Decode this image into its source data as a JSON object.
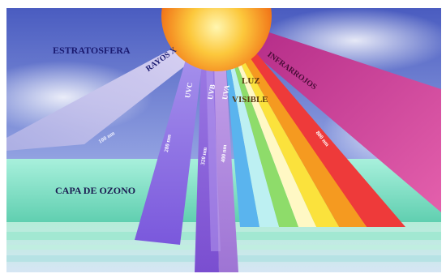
{
  "labels": {
    "stratosphere": "ESTRATOSFERA",
    "xrays": "RAYOS X",
    "uvc": "UVC",
    "uvb": "UVB",
    "uva": "UVA",
    "visible_line1": "LUZ",
    "visible_line2": "VISIBLE",
    "infrared": "INFRARROJOS",
    "ozone": "CAPA DE OZONO"
  },
  "wavelengths": {
    "xrays": "100 nm",
    "uvc": "280 nm",
    "uvb": "320 nm",
    "uva": "400 nm",
    "infrared": "800 nm"
  },
  "colors": {
    "sky_top": "#5566c8",
    "sky_bottom": "#c8d4f0",
    "sun_core": "#fff2a0",
    "sun_edge": "#f07818",
    "ozone_band": "#7ee0c4",
    "xrays_beam": "#c4bce8",
    "uvc_beam": "#8a70e0",
    "uva_beam": "#a87ed8",
    "infrared_beam": "#d43c98"
  }
}
